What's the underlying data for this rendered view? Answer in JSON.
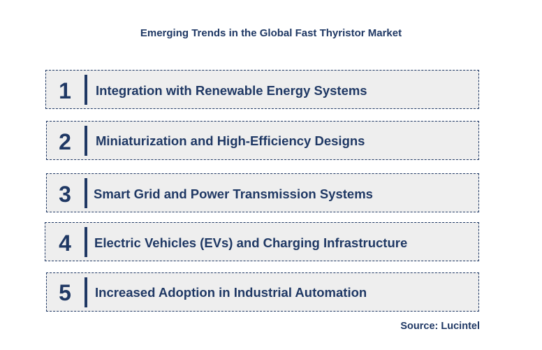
{
  "title": "Emerging Trends in the Global Fast Thyristor Market",
  "trends": [
    {
      "number": "1",
      "label": "Integration with Renewable Energy Systems"
    },
    {
      "number": "2",
      "label": "Miniaturization and High-Efficiency Designs"
    },
    {
      "number": "3",
      "label": "Smart Grid and Power Transmission Systems"
    },
    {
      "number": "4",
      "label": "Electric Vehicles (EVs) and Charging Infrastructure"
    },
    {
      "number": "5",
      "label": "Increased Adoption in Industrial Automation"
    }
  ],
  "source": "Source: Lucintel",
  "colors": {
    "text": "#1f3864",
    "box_fill": "#eeeeee",
    "background": "#ffffff"
  }
}
